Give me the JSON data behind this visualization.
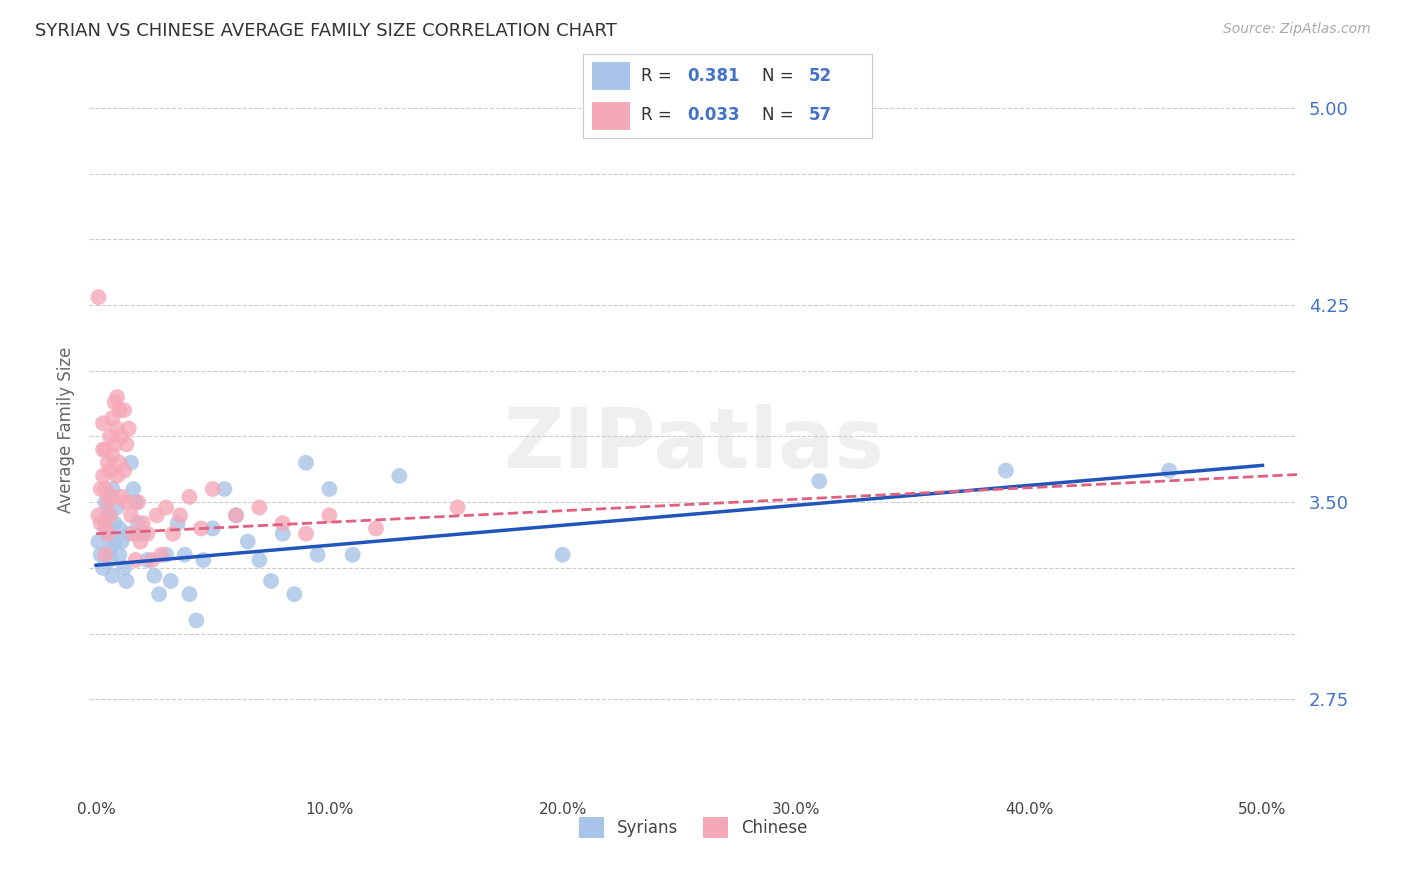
{
  "title": "SYRIAN VS CHINESE AVERAGE FAMILY SIZE CORRELATION CHART",
  "source": "Source: ZipAtlas.com",
  "ylabel": "Average Family Size",
  "ymin": 2.4,
  "ymax": 5.15,
  "xmin": -0.003,
  "xmax": 0.515,
  "legend_r_syrians": "0.381",
  "legend_n_syrians": "52",
  "legend_r_chinese": "0.033",
  "legend_n_chinese": "57",
  "syrians_color": "#a8c4e8",
  "chinese_color": "#f5a8b8",
  "syrians_line_color": "#2255bb",
  "chinese_line_color": "#e06080",
  "background_color": "#ffffff",
  "grid_color": "#cccccc",
  "title_color": "#333333",
  "right_tick_color": "#4472c4",
  "watermark": "ZIPatlas",
  "syrians_line_x0": 0.0,
  "syrians_line_y0": 3.26,
  "syrians_line_x1": 0.5,
  "syrians_line_y1": 3.64,
  "chinese_line_x0": 0.0,
  "chinese_line_y0": 3.38,
  "chinese_line_x1": 0.16,
  "chinese_line_y1": 3.45,
  "syrians_x": [
    0.001,
    0.002,
    0.003,
    0.004,
    0.004,
    0.005,
    0.005,
    0.006,
    0.006,
    0.007,
    0.007,
    0.008,
    0.008,
    0.009,
    0.01,
    0.01,
    0.011,
    0.012,
    0.013,
    0.014,
    0.015,
    0.016,
    0.017,
    0.018,
    0.02,
    0.022,
    0.025,
    0.027,
    0.03,
    0.032,
    0.035,
    0.038,
    0.04,
    0.043,
    0.046,
    0.05,
    0.055,
    0.06,
    0.065,
    0.07,
    0.075,
    0.08,
    0.085,
    0.09,
    0.095,
    0.1,
    0.11,
    0.13,
    0.2,
    0.31,
    0.39,
    0.46
  ],
  "syrians_y": [
    3.35,
    3.3,
    3.25,
    3.4,
    3.5,
    3.45,
    3.38,
    3.32,
    3.28,
    3.22,
    3.55,
    3.42,
    3.35,
    3.48,
    3.4,
    3.3,
    3.35,
    3.25,
    3.2,
    3.38,
    3.65,
    3.55,
    3.5,
    3.42,
    3.38,
    3.28,
    3.22,
    3.15,
    3.3,
    3.2,
    3.42,
    3.3,
    3.15,
    3.05,
    3.28,
    3.4,
    3.55,
    3.45,
    3.35,
    3.28,
    3.2,
    3.38,
    3.15,
    3.65,
    3.3,
    3.55,
    3.3,
    3.6,
    3.3,
    3.58,
    3.62,
    3.62
  ],
  "chinese_x": [
    0.001,
    0.001,
    0.002,
    0.002,
    0.003,
    0.003,
    0.003,
    0.004,
    0.004,
    0.004,
    0.004,
    0.005,
    0.005,
    0.005,
    0.006,
    0.006,
    0.006,
    0.007,
    0.007,
    0.007,
    0.008,
    0.008,
    0.009,
    0.009,
    0.009,
    0.01,
    0.01,
    0.011,
    0.011,
    0.012,
    0.012,
    0.013,
    0.013,
    0.014,
    0.015,
    0.016,
    0.017,
    0.018,
    0.019,
    0.02,
    0.022,
    0.024,
    0.026,
    0.028,
    0.03,
    0.033,
    0.036,
    0.04,
    0.045,
    0.05,
    0.06,
    0.07,
    0.08,
    0.09,
    0.1,
    0.12,
    0.155
  ],
  "chinese_y": [
    3.45,
    4.28,
    3.42,
    3.55,
    3.7,
    3.6,
    3.8,
    3.7,
    3.55,
    3.42,
    3.3,
    3.65,
    3.5,
    3.38,
    3.75,
    3.62,
    3.45,
    3.82,
    3.68,
    3.52,
    3.88,
    3.72,
    3.9,
    3.78,
    3.6,
    3.85,
    3.65,
    3.75,
    3.52,
    3.85,
    3.62,
    3.72,
    3.5,
    3.78,
    3.45,
    3.38,
    3.28,
    3.5,
    3.35,
    3.42,
    3.38,
    3.28,
    3.45,
    3.3,
    3.48,
    3.38,
    3.45,
    3.52,
    3.4,
    3.55,
    3.45,
    3.48,
    3.42,
    3.38,
    3.45,
    3.4,
    3.48
  ]
}
